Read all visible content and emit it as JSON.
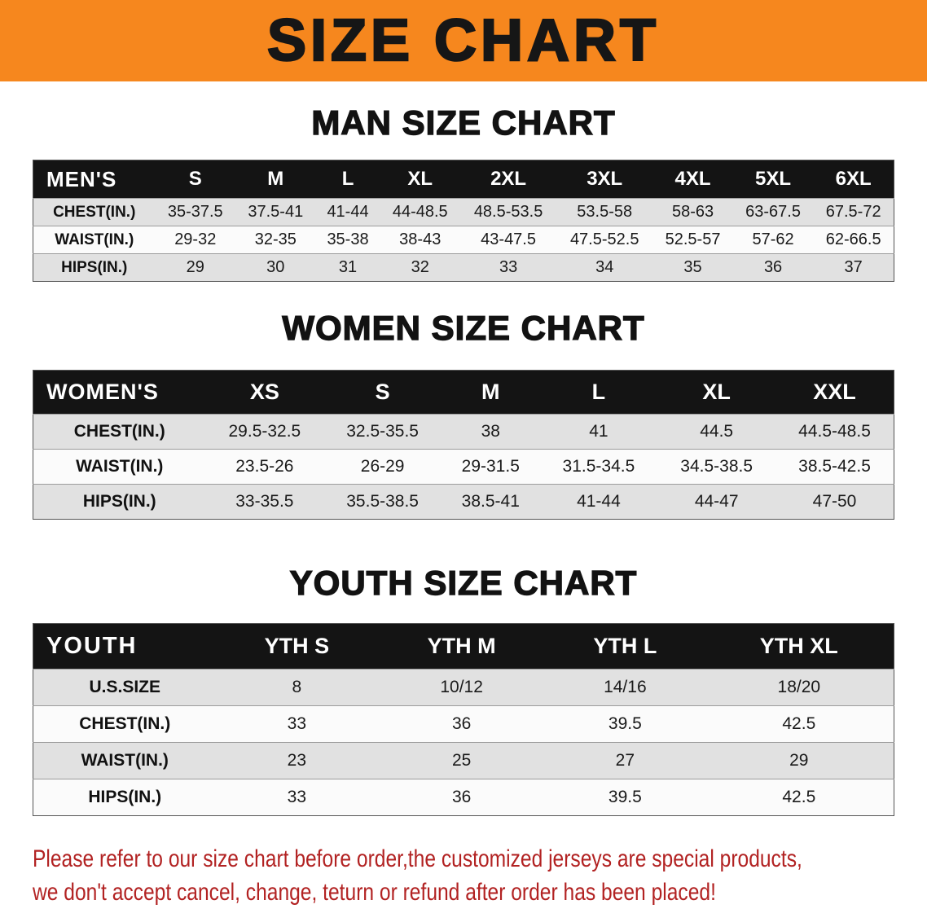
{
  "banner": {
    "title": "SIZE CHART"
  },
  "sections": [
    {
      "heading": "MAN SIZE CHART",
      "table": {
        "corner_label": "MEN'S",
        "columns": [
          "S",
          "M",
          "L",
          "XL",
          "2XL",
          "3XL",
          "4XL",
          "5XL",
          "6XL"
        ],
        "rows": [
          {
            "label": "CHEST(IN.)",
            "values": [
              "35-37.5",
              "37.5-41",
              "41-44",
              "44-48.5",
              "48.5-53.5",
              "53.5-58",
              "58-63",
              "63-67.5",
              "67.5-72"
            ]
          },
          {
            "label": "WAIST(IN.)",
            "values": [
              "29-32",
              "32-35",
              "35-38",
              "38-43",
              "43-47.5",
              "47.5-52.5",
              "52.5-57",
              "57-62",
              "62-66.5"
            ]
          },
          {
            "label": "HIPS(IN.)",
            "values": [
              "29",
              "30",
              "31",
              "32",
              "33",
              "34",
              "35",
              "36",
              "37"
            ]
          }
        ]
      }
    },
    {
      "heading": "WOMEN SIZE CHART",
      "table": {
        "corner_label": "WOMEN'S",
        "columns": [
          "XS",
          "S",
          "M",
          "L",
          "XL",
          "XXL"
        ],
        "rows": [
          {
            "label": "CHEST(IN.)",
            "values": [
              "29.5-32.5",
              "32.5-35.5",
              "38",
              "41",
              "44.5",
              "44.5-48.5"
            ]
          },
          {
            "label": "WAIST(IN.)",
            "values": [
              "23.5-26",
              "26-29",
              "29-31.5",
              "31.5-34.5",
              "34.5-38.5",
              "38.5-42.5"
            ]
          },
          {
            "label": "HIPS(IN.)",
            "values": [
              "33-35.5",
              "35.5-38.5",
              "38.5-41",
              "41-44",
              "44-47",
              "47-50"
            ]
          }
        ]
      }
    },
    {
      "heading": "YOUTH SIZE CHART",
      "table": {
        "corner_label": "YOUTH",
        "columns": [
          "YTH S",
          "YTH M",
          "YTH L",
          "YTH XL"
        ],
        "rows": [
          {
            "label": "U.S.SIZE",
            "values": [
              "8",
              "10/12",
              "14/16",
              "18/20"
            ]
          },
          {
            "label": "CHEST(IN.)",
            "values": [
              "33",
              "36",
              "39.5",
              "42.5"
            ]
          },
          {
            "label": "WAIST(IN.)",
            "values": [
              "23",
              "25",
              "27",
              "29"
            ]
          },
          {
            "label": "HIPS(IN.)",
            "values": [
              "33",
              "36",
              "39.5",
              "42.5"
            ]
          }
        ]
      }
    }
  ],
  "footer_note": {
    "lines": [
      "Please refer to our size chart before order,the customized jerseys are special products,",
      "we don't accept cancel, change, teturn or refund after order has been placed!"
    ]
  },
  "theme": {
    "banner_bg": "#f6871e",
    "header_bg": "#141414",
    "header_text": "#ffffff",
    "stripe_gray": "#e1e1e1",
    "stripe_white": "#fbfbfb",
    "note_color": "#b22222"
  }
}
